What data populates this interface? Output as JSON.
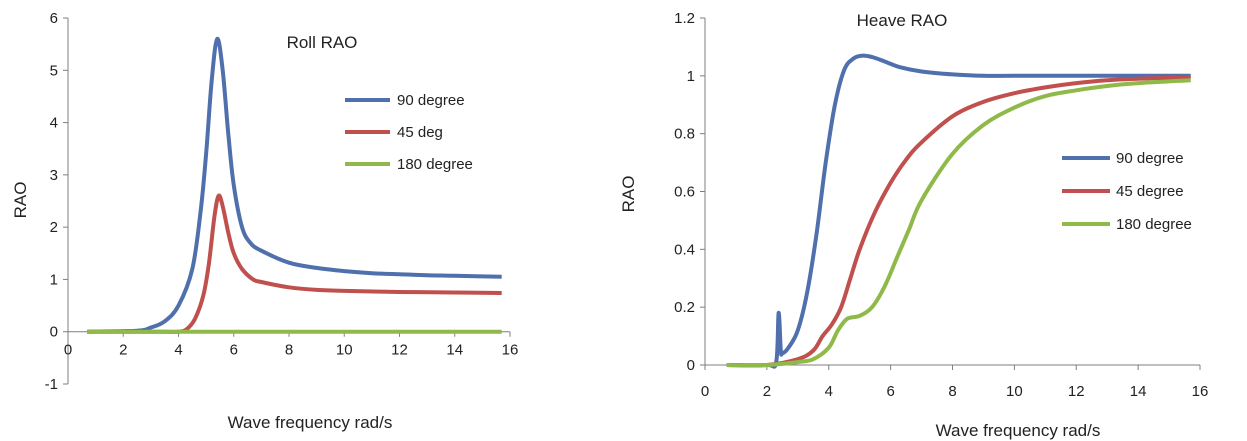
{
  "chart_data": [
    {
      "type": "line",
      "title": "Roll RAO",
      "xlabel": "Wave frequency rad/s",
      "ylabel": "RAO",
      "xlim": [
        0,
        16
      ],
      "ylim": [
        -1,
        6
      ],
      "xticks": [
        "0",
        "2",
        "4",
        "6",
        "8",
        "10",
        "12",
        "14",
        "16"
      ],
      "yticks": [
        "-1",
        "0",
        "1",
        "2",
        "3",
        "4",
        "5",
        "6"
      ],
      "grid": false,
      "legend_position": "top-right",
      "series": [
        {
          "name": "90 degree",
          "color": "#4f6fad",
          "x": [
            0.7,
            2.5,
            3.0,
            3.5,
            4.0,
            4.5,
            4.8,
            5.0,
            5.2,
            5.4,
            5.6,
            5.8,
            6.0,
            6.3,
            6.6,
            7.0,
            8.0,
            9.0,
            10.0,
            11.0,
            12.0,
            13.0,
            14.0,
            15.7
          ],
          "y": [
            0.0,
            0.02,
            0.08,
            0.2,
            0.5,
            1.2,
            2.3,
            3.4,
            4.8,
            5.6,
            5.0,
            3.8,
            2.8,
            2.0,
            1.7,
            1.55,
            1.32,
            1.22,
            1.16,
            1.12,
            1.1,
            1.08,
            1.07,
            1.05
          ]
        },
        {
          "name": "45 deg",
          "color": "#c0504d",
          "x": [
            0.7,
            3.5,
            4.0,
            4.3,
            4.6,
            4.9,
            5.1,
            5.3,
            5.45,
            5.6,
            5.8,
            6.0,
            6.3,
            6.7,
            7.0,
            8.0,
            9.0,
            10.0,
            12.0,
            14.0,
            15.7
          ],
          "y": [
            0.0,
            0.0,
            0.0,
            0.05,
            0.25,
            0.7,
            1.3,
            2.2,
            2.6,
            2.4,
            1.9,
            1.5,
            1.2,
            1.0,
            0.95,
            0.85,
            0.8,
            0.78,
            0.76,
            0.75,
            0.74
          ]
        },
        {
          "name": "180 degree",
          "color": "#8fba49",
          "x": [
            0.7,
            15.7
          ],
          "y": [
            0.0,
            0.0
          ]
        }
      ]
    },
    {
      "type": "line",
      "title": "Heave RAO",
      "xlabel": "Wave frequency rad/s",
      "ylabel": "RAO",
      "xlim": [
        0,
        16
      ],
      "ylim": [
        0,
        1.2
      ],
      "xticks": [
        "0",
        "2",
        "4",
        "6",
        "8",
        "10",
        "12",
        "14",
        "16"
      ],
      "yticks": [
        "0",
        "0.2",
        "0.4",
        "0.6",
        "0.8",
        "1",
        "1.2"
      ],
      "grid": false,
      "legend_position": "right",
      "series": [
        {
          "name": "90 degree",
          "color": "#4f6fad",
          "x": [
            0.7,
            2.0,
            2.3,
            2.38,
            2.45,
            2.5,
            2.7,
            3.0,
            3.3,
            3.6,
            3.9,
            4.2,
            4.5,
            4.8,
            5.1,
            5.4,
            5.8,
            6.3,
            7.0,
            8.0,
            9.0,
            10.0,
            12.0,
            14.0,
            15.7
          ],
          "y": [
            0.0,
            0.0,
            0.01,
            0.18,
            0.05,
            0.04,
            0.06,
            0.12,
            0.25,
            0.45,
            0.7,
            0.9,
            1.02,
            1.06,
            1.07,
            1.065,
            1.05,
            1.03,
            1.015,
            1.005,
            1.0,
            1.0,
            1.0,
            1.0,
            1.0
          ]
        },
        {
          "name": "45 degree",
          "color": "#c0504d",
          "x": [
            0.7,
            2.0,
            3.0,
            3.5,
            3.8,
            4.1,
            4.4,
            4.7,
            5.0,
            5.5,
            6.0,
            6.5,
            7.0,
            8.0,
            9.0,
            10.0,
            11.0,
            12.0,
            13.0,
            14.0,
            15.7
          ],
          "y": [
            0.0,
            0.0,
            0.02,
            0.05,
            0.1,
            0.14,
            0.2,
            0.3,
            0.4,
            0.53,
            0.63,
            0.71,
            0.77,
            0.86,
            0.91,
            0.94,
            0.96,
            0.975,
            0.985,
            0.99,
            0.995
          ]
        },
        {
          "name": "180 degree",
          "color": "#8fba49",
          "x": [
            0.7,
            2.0,
            3.0,
            3.5,
            4.0,
            4.3,
            4.6,
            5.0,
            5.4,
            5.8,
            6.2,
            6.6,
            7.0,
            8.0,
            9.0,
            10.0,
            11.0,
            12.0,
            13.0,
            14.0,
            15.7
          ],
          "y": [
            0.0,
            0.0,
            0.01,
            0.02,
            0.06,
            0.12,
            0.16,
            0.17,
            0.2,
            0.27,
            0.37,
            0.47,
            0.57,
            0.73,
            0.83,
            0.89,
            0.93,
            0.95,
            0.965,
            0.975,
            0.985
          ]
        }
      ]
    }
  ]
}
